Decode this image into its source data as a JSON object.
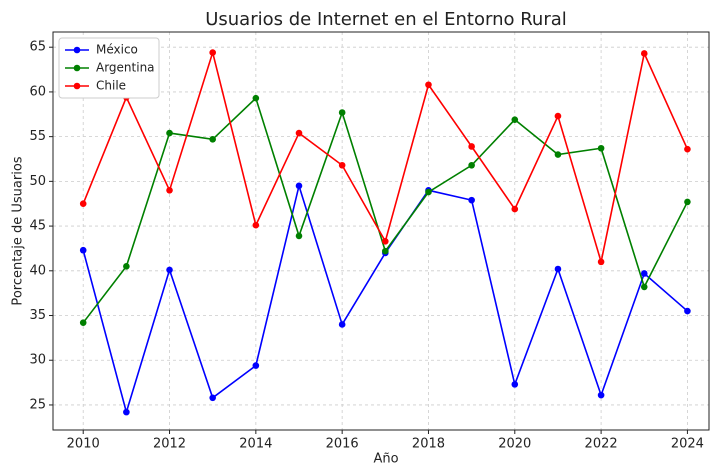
{
  "chart_data": {
    "type": "line",
    "title": "Usuarios de Internet en el Entorno Rural",
    "xlabel": "Año",
    "ylabel": "Porcentaje de Usuarios",
    "x": [
      2010,
      2011,
      2012,
      2013,
      2014,
      2015,
      2016,
      2017,
      2018,
      2019,
      2020,
      2021,
      2022,
      2023,
      2024
    ],
    "series": [
      {
        "name": "México",
        "color": "#0000ff",
        "values": [
          42.3,
          24.2,
          40.1,
          25.8,
          29.4,
          49.5,
          34.0,
          42.0,
          49.0,
          47.9,
          27.3,
          40.2,
          26.1,
          39.7,
          35.5
        ]
      },
      {
        "name": "Argentina",
        "color": "#008000",
        "values": [
          34.2,
          40.5,
          55.4,
          54.7,
          59.3,
          43.9,
          57.7,
          42.2,
          48.8,
          51.8,
          56.9,
          53.0,
          53.7,
          38.2,
          47.7
        ]
      },
      {
        "name": "Chile",
        "color": "#ff0000",
        "values": [
          47.5,
          59.4,
          49.0,
          64.4,
          45.1,
          55.4,
          51.8,
          43.3,
          60.8,
          53.9,
          46.9,
          57.3,
          41.0,
          64.3,
          53.6
        ]
      }
    ],
    "xlim": [
      2009.3,
      2024.5
    ],
    "xticks": [
      2010,
      2012,
      2014,
      2016,
      2018,
      2020,
      2022,
      2024
    ],
    "ylim": [
      22.2,
      66.7
    ],
    "yticks": [
      25,
      30,
      35,
      40,
      45,
      50,
      55,
      60,
      65
    ],
    "grid": true,
    "legend": "upper left"
  }
}
